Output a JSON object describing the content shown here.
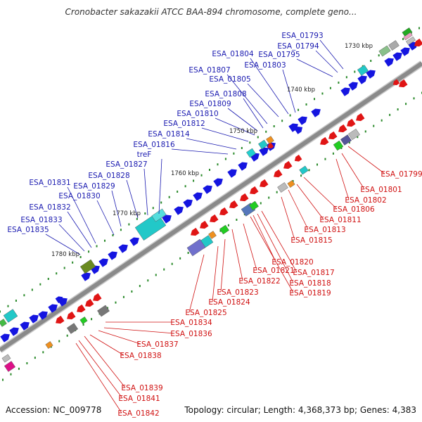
{
  "title": "Cronobacter sakazakii ATCC BAA-894 chromosome, complete geno...",
  "footer": {
    "accession": "Accession: NC_009778",
    "summary": "Topology: circular; Length: 4,368,373 bp; Genes: 4,383"
  },
  "colors": {
    "backbone": "#8a8a8a",
    "forward_strand": "#1515e0",
    "reverse_strand": "#e01515",
    "label_forward": "#1a1ab0",
    "label_reverse": "#d01010",
    "tick": "#2a8a2a"
  },
  "scale_labels": [
    "1730 kbp",
    "1740 kbp",
    "1750 kbp",
    "1760 kbp",
    "1770 kbp",
    "1780 kbp"
  ],
  "labels_top": [
    "ESA_01793",
    "ESA_01794",
    "ESA_01795",
    "ESA_01803",
    "ESA_01804",
    "ESA_01805",
    "ESA_01807",
    "ESA_01808",
    "ESA_01809",
    "ESA_01810",
    "ESA_01812",
    "ESA_01814",
    "ESA_01816",
    "treF",
    "ESA_01827",
    "ESA_01828",
    "ESA_01829",
    "ESA_01830",
    "ESA_01831",
    "ESA_01832",
    "ESA_01833",
    "ESA_01835"
  ],
  "labels_bottom": [
    "ESA_01799",
    "ESA_01801",
    "ESA_01802",
    "ESA_01806",
    "ESA_01811",
    "ESA_01813",
    "ESA_01815",
    "ESA_01817",
    "ESA_01818",
    "ESA_01819",
    "ESA_01820",
    "ESA_01821",
    "ESA_01822",
    "ESA_01823",
    "ESA_01824",
    "ESA_01825",
    "ESA_01834",
    "ESA_01836",
    "ESA_01837",
    "ESA_01838",
    "ESA_01839",
    "ESA_01841",
    "ESA_01842"
  ]
}
